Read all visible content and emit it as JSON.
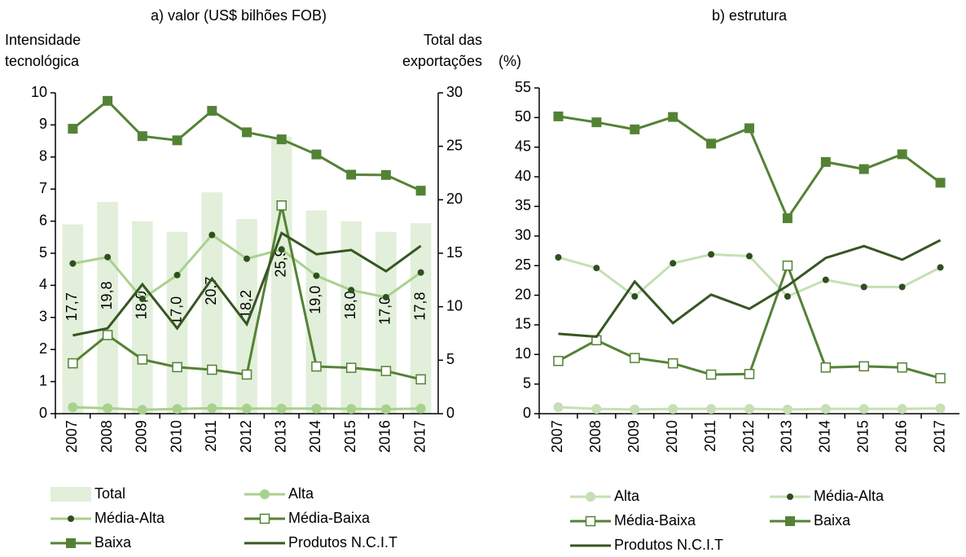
{
  "chart_data": [
    {
      "type": "line",
      "title": "a) valor (US$ bilhões FOB)",
      "y_label": [
        "Intensidade",
        "tecnológica"
      ],
      "y2_label": [
        "Total das",
        "exportações"
      ],
      "categories": [
        "2007",
        "2008",
        "2009",
        "2010",
        "2011",
        "2012",
        "2013",
        "2014",
        "2015",
        "2016",
        "2017"
      ],
      "ylim": [
        0,
        10
      ],
      "yticks": [
        0,
        1,
        2,
        3,
        4,
        5,
        6,
        7,
        8,
        9,
        10
      ],
      "y2lim": [
        0,
        30
      ],
      "y2ticks": [
        0,
        5,
        10,
        15,
        20,
        25,
        30
      ],
      "bars": {
        "name": "Total",
        "color": "#e2efda",
        "axis": "y2",
        "values": [
          17.7,
          19.8,
          18.0,
          17.0,
          20.7,
          18.2,
          25.9,
          19.0,
          18.0,
          17.0,
          17.8
        ],
        "value_labels": [
          "17,7",
          "19,8",
          "18,0",
          "17,0",
          "20,7",
          "18,2",
          "25,9",
          "19,0",
          "18,0",
          "17,0",
          "17,8"
        ]
      },
      "series": [
        {
          "name": "Alta",
          "color": "#a9d18e",
          "marker": "circle",
          "values": [
            0.2,
            0.17,
            0.12,
            0.15,
            0.17,
            0.16,
            0.16,
            0.16,
            0.15,
            0.14,
            0.16
          ]
        },
        {
          "name": "Média-Alta",
          "color": "#a9d18e",
          "marker": "dot",
          "marker_color": "#2f4f1f",
          "values": [
            4.68,
            4.88,
            3.58,
            4.32,
            5.57,
            4.83,
            5.12,
            4.3,
            3.85,
            3.63,
            4.4
          ]
        },
        {
          "name": "Média-Baixa",
          "color": "#548235",
          "marker": "square-open",
          "values": [
            1.57,
            2.45,
            1.69,
            1.45,
            1.37,
            1.22,
            6.49,
            1.47,
            1.43,
            1.33,
            1.07
          ]
        },
        {
          "name": "Baixa",
          "color": "#548235",
          "marker": "square",
          "values": [
            8.88,
            9.75,
            8.65,
            8.52,
            9.44,
            8.77,
            8.55,
            8.08,
            7.45,
            7.44,
            6.95
          ]
        },
        {
          "name": "Produtos N.C.I.T",
          "color": "#375623",
          "marker": "none",
          "values": [
            2.44,
            2.66,
            4.03,
            2.66,
            4.21,
            2.79,
            5.63,
            4.97,
            5.1,
            4.44,
            5.23
          ]
        }
      ]
    },
    {
      "type": "line",
      "title": "b) estrutura",
      "y_label": [
        "(%)"
      ],
      "categories": [
        "2007",
        "2008",
        "2009",
        "2010",
        "2011",
        "2012",
        "2013",
        "2014",
        "2015",
        "2016",
        "2017"
      ],
      "ylim": [
        0,
        55
      ],
      "yticks": [
        0,
        5,
        10,
        15,
        20,
        25,
        30,
        35,
        40,
        45,
        50,
        55
      ],
      "series": [
        {
          "name": "Alta",
          "color": "#c5e0b4",
          "marker": "circle",
          "values": [
            1.1,
            0.8,
            0.7,
            0.8,
            0.8,
            0.8,
            0.7,
            0.8,
            0.8,
            0.8,
            0.9
          ]
        },
        {
          "name": "Média-Alta",
          "color": "#c5e0b4",
          "marker": "dot",
          "marker_color": "#2f4f1f",
          "values": [
            26.4,
            24.6,
            19.8,
            25.4,
            26.9,
            26.6,
            19.8,
            22.6,
            21.4,
            21.4,
            24.7
          ]
        },
        {
          "name": "Média-Baixa",
          "color": "#548235",
          "marker": "square-open",
          "values": [
            8.9,
            12.4,
            9.4,
            8.5,
            6.6,
            6.7,
            25.0,
            7.8,
            8.0,
            7.8,
            6.0
          ]
        },
        {
          "name": "Baixa",
          "color": "#548235",
          "marker": "square",
          "values": [
            50.2,
            49.2,
            48.0,
            50.1,
            45.6,
            48.2,
            33.0,
            42.5,
            41.3,
            43.8,
            39.0
          ]
        },
        {
          "name": "Produtos N.C.I.T",
          "color": "#375623",
          "marker": "none",
          "values": [
            13.5,
            13.0,
            22.3,
            15.3,
            20.1,
            17.7,
            21.6,
            26.3,
            28.3,
            26.0,
            29.3
          ]
        }
      ]
    }
  ]
}
